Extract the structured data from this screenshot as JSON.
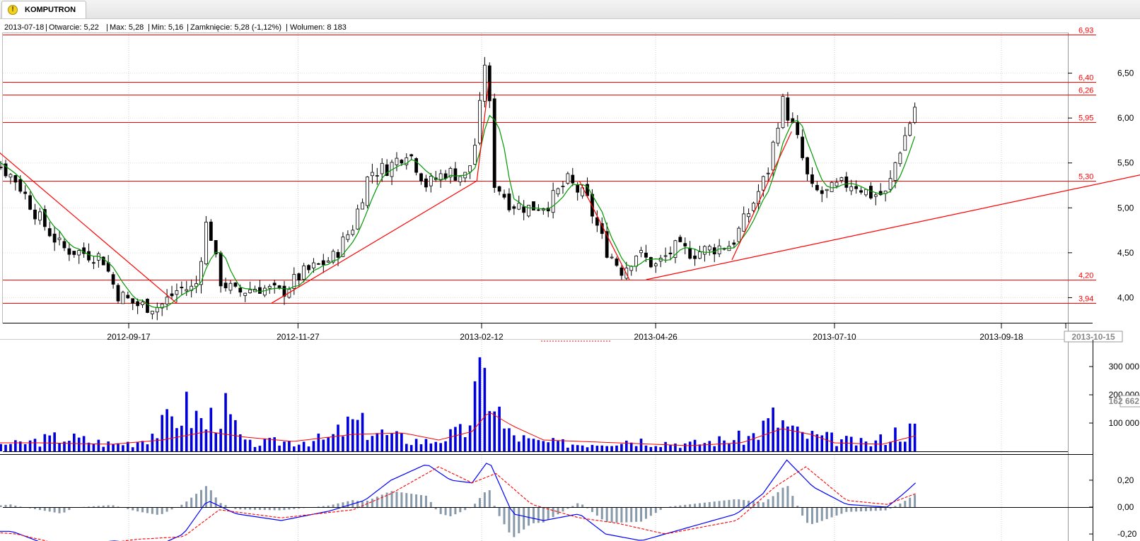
{
  "tab": {
    "label": "KOMPUTRON",
    "icon": "warning-icon"
  },
  "info": {
    "date": "2013-07-18",
    "open": "Otwarcie: 5,22",
    "max": "Max: 5,28",
    "min": "Min: 5,16",
    "close": "Zamknięcie: 5,28 (-1,12%)",
    "volume": "Wolumen: 8 183"
  },
  "colors": {
    "up": "#ffffff",
    "down": "#000000",
    "sma": "#009900",
    "lines": "#ff0000",
    "volume": "#0000dd",
    "macd": "#0000ff",
    "signal": "#ff0000",
    "hist": "#8899aa"
  },
  "chart_data": [
    {
      "type": "candlestick",
      "title": "",
      "x_dates": [
        "2012-09-17",
        "2012-11-27",
        "2013-02-12",
        "2013-04-26",
        "2013-07-10",
        "2013-09-18",
        "2013-10-15"
      ],
      "y_ticks": [
        "4,00",
        "4,50",
        "5,00",
        "5,50",
        "6,00",
        "6,50"
      ],
      "ylim": [
        3.8,
        6.98
      ],
      "horizontal_levels": [
        {
          "label": "6,93",
          "value": 6.93
        },
        {
          "label": "6,40",
          "value": 6.4
        },
        {
          "label": "6,26",
          "value": 6.26
        },
        {
          "label": "5,95",
          "value": 5.95
        },
        {
          "label": "5,30",
          "value": 5.3
        },
        {
          "label": "4,20",
          "value": 4.2
        },
        {
          "label": "3,94",
          "value": 3.94
        }
      ],
      "trend_lines": [
        {
          "from": [
            "2012-07-10",
            5.95
          ],
          "to": [
            "2012-10-07",
            3.94
          ]
        },
        {
          "from": [
            "2012-11-16",
            3.94
          ],
          "to": [
            "2013-02-10",
            5.3
          ]
        },
        {
          "from": [
            "2013-02-10",
            5.3
          ],
          "to": [
            "2013-02-15",
            6.4
          ]
        },
        {
          "from": [
            "2013-03-25",
            5.3
          ],
          "to": [
            "2013-04-15",
            4.2
          ]
        },
        {
          "from": [
            "2013-04-22",
            4.2
          ],
          "to": [
            "2014-01-10",
            5.68
          ]
        },
        {
          "from": [
            "2013-05-28",
            4.42
          ],
          "to": [
            "2013-06-22",
            5.85
          ]
        }
      ],
      "close_points": [
        [
          "2012-07-12",
          5.5
        ],
        [
          "2012-07-22",
          5.55
        ],
        [
          "2012-08-01",
          5.3
        ],
        [
          "2012-08-10",
          4.9
        ],
        [
          "2012-08-20",
          4.55
        ],
        [
          "2012-08-29",
          4.5
        ],
        [
          "2012-09-06",
          4.45
        ],
        [
          "2012-09-12",
          4.05
        ],
        [
          "2012-09-20",
          3.92
        ],
        [
          "2012-09-30",
          3.9
        ],
        [
          "2012-10-08",
          4.1
        ],
        [
          "2012-10-15",
          4.1
        ],
        [
          "2012-10-20",
          4.9
        ],
        [
          "2012-10-25",
          4.2
        ],
        [
          "2012-11-01",
          4.05
        ],
        [
          "2012-11-10",
          4.12
        ],
        [
          "2012-11-20",
          4.05
        ],
        [
          "2012-11-28",
          4.25
        ],
        [
          "2012-12-05",
          4.35
        ],
        [
          "2012-12-12",
          4.45
        ],
        [
          "2012-12-20",
          4.8
        ],
        [
          "2012-12-27",
          5.4
        ],
        [
          "2013-01-04",
          5.45
        ],
        [
          "2013-01-12",
          5.65
        ],
        [
          "2013-01-20",
          5.25
        ],
        [
          "2013-01-28",
          5.4
        ],
        [
          "2013-02-06",
          5.35
        ],
        [
          "2013-02-10",
          5.8
        ],
        [
          "2013-02-14",
          6.8
        ],
        [
          "2013-02-17",
          5.3
        ],
        [
          "2013-02-24",
          5.05
        ],
        [
          "2013-03-04",
          5.0
        ],
        [
          "2013-03-12",
          5.05
        ],
        [
          "2013-03-20",
          5.3
        ],
        [
          "2013-03-28",
          5.1
        ],
        [
          "2013-04-05",
          4.55
        ],
        [
          "2013-04-12",
          4.3
        ],
        [
          "2013-04-18",
          4.5
        ],
        [
          "2013-04-26",
          4.35
        ],
        [
          "2013-05-04",
          4.55
        ],
        [
          "2013-05-12",
          4.5
        ],
        [
          "2013-05-20",
          4.55
        ],
        [
          "2013-05-28",
          4.6
        ],
        [
          "2013-06-04",
          4.95
        ],
        [
          "2013-06-12",
          5.4
        ],
        [
          "2013-06-18",
          6.2
        ],
        [
          "2013-06-24",
          5.8
        ],
        [
          "2013-06-30",
          5.2
        ],
        [
          "2013-07-06",
          5.15
        ],
        [
          "2013-07-12",
          5.25
        ],
        [
          "2013-07-18",
          5.28
        ],
        [
          "2013-07-25",
          5.15
        ],
        [
          "2013-08-01",
          5.15
        ],
        [
          "2013-08-05",
          5.55
        ],
        [
          "2013-08-10",
          5.9
        ],
        [
          "2013-08-13",
          6.15
        ]
      ],
      "sma_period": 5
    },
    {
      "type": "bar",
      "title": "",
      "y_ticks": [
        "100 000",
        "200 000",
        "300 000"
      ],
      "ylim": [
        0,
        340000
      ],
      "current_value_label": "162 662",
      "volume_points": [
        [
          "2012-07-10",
          40000
        ],
        [
          "2012-08-01",
          30000
        ],
        [
          "2012-08-20",
          60000
        ],
        [
          "2012-09-10",
          30000
        ],
        [
          "2012-09-20",
          40000
        ],
        [
          "2012-10-01",
          100000
        ],
        [
          "2012-10-10",
          180000
        ],
        [
          "2012-10-20",
          110000
        ],
        [
          "2012-10-25",
          200000
        ],
        [
          "2012-11-05",
          30000
        ],
        [
          "2012-11-20",
          40000
        ],
        [
          "2012-12-10",
          50000
        ],
        [
          "2012-12-20",
          120000
        ],
        [
          "2013-01-05",
          60000
        ],
        [
          "2013-01-20",
          40000
        ],
        [
          "2013-02-05",
          80000
        ],
        [
          "2013-02-10",
          250000
        ],
        [
          "2013-02-15",
          300000
        ],
        [
          "2013-02-22",
          80000
        ],
        [
          "2013-03-05",
          40000
        ],
        [
          "2013-03-25",
          30000
        ],
        [
          "2013-04-15",
          50000
        ],
        [
          "2013-05-10",
          30000
        ],
        [
          "2013-06-05",
          60000
        ],
        [
          "2013-06-15",
          140000
        ],
        [
          "2013-06-25",
          70000
        ],
        [
          "2013-07-10",
          50000
        ],
        [
          "2013-07-25",
          30000
        ],
        [
          "2013-08-05",
          80000
        ],
        [
          "2013-08-13",
          90000
        ]
      ],
      "ma_points": [
        [
          "2012-07-10",
          30000
        ],
        [
          "2012-08-10",
          30000
        ],
        [
          "2012-09-10",
          25000
        ],
        [
          "2012-10-01",
          40000
        ],
        [
          "2012-10-20",
          70000
        ],
        [
          "2012-11-05",
          50000
        ],
        [
          "2012-11-25",
          35000
        ],
        [
          "2012-12-20",
          60000
        ],
        [
          "2013-01-10",
          65000
        ],
        [
          "2013-01-25",
          40000
        ],
        [
          "2013-02-08",
          70000
        ],
        [
          "2013-02-15",
          140000
        ],
        [
          "2013-02-25",
          90000
        ],
        [
          "2013-03-10",
          40000
        ],
        [
          "2013-04-10",
          30000
        ],
        [
          "2013-05-10",
          20000
        ],
        [
          "2013-06-01",
          30000
        ],
        [
          "2013-06-18",
          80000
        ],
        [
          "2013-06-30",
          60000
        ],
        [
          "2013-07-10",
          30000
        ],
        [
          "2013-07-30",
          25000
        ],
        [
          "2013-08-13",
          55000
        ]
      ]
    },
    {
      "type": "line",
      "title": "",
      "y_ticks": [
        "-0,20",
        "0,00",
        "0,20"
      ],
      "ylim": [
        -0.36,
        0.42
      ],
      "macd_points": [
        [
          "2012-07-10",
          -0.18
        ],
        [
          "2012-07-30",
          -0.18
        ],
        [
          "2012-08-20",
          -0.32
        ],
        [
          "2012-09-10",
          -0.25
        ],
        [
          "2012-09-30",
          -0.28
        ],
        [
          "2012-10-10",
          -0.2
        ],
        [
          "2012-10-20",
          0.05
        ],
        [
          "2012-11-01",
          -0.05
        ],
        [
          "2012-11-20",
          -0.1
        ],
        [
          "2012-12-10",
          -0.03
        ],
        [
          "2012-12-25",
          0.05
        ],
        [
          "2013-01-05",
          0.2
        ],
        [
          "2013-01-20",
          0.32
        ],
        [
          "2013-01-30",
          0.2
        ],
        [
          "2013-02-08",
          0.18
        ],
        [
          "2013-02-15",
          0.35
        ],
        [
          "2013-02-25",
          -0.05
        ],
        [
          "2013-03-10",
          -0.1
        ],
        [
          "2013-03-25",
          -0.05
        ],
        [
          "2013-04-05",
          -0.2
        ],
        [
          "2013-04-20",
          -0.25
        ],
        [
          "2013-05-10",
          -0.15
        ],
        [
          "2013-05-30",
          -0.05
        ],
        [
          "2013-06-10",
          0.1
        ],
        [
          "2013-06-20",
          0.35
        ],
        [
          "2013-07-01",
          0.15
        ],
        [
          "2013-07-15",
          0.02
        ],
        [
          "2013-08-01",
          0.0
        ],
        [
          "2013-08-08",
          0.1
        ],
        [
          "2013-08-13",
          0.18
        ]
      ],
      "signal_points": [
        [
          "2012-07-10",
          -0.17
        ],
        [
          "2012-08-01",
          -0.2
        ],
        [
          "2012-08-25",
          -0.3
        ],
        [
          "2012-09-20",
          -0.24
        ],
        [
          "2012-10-10",
          -0.22
        ],
        [
          "2012-10-25",
          -0.02
        ],
        [
          "2012-11-20",
          -0.08
        ],
        [
          "2012-12-20",
          -0.02
        ],
        [
          "2013-01-05",
          0.1
        ],
        [
          "2013-01-25",
          0.3
        ],
        [
          "2013-02-08",
          0.18
        ],
        [
          "2013-02-18",
          0.25
        ],
        [
          "2013-03-05",
          0.02
        ],
        [
          "2013-03-25",
          -0.08
        ],
        [
          "2013-04-10",
          -0.12
        ],
        [
          "2013-04-30",
          -0.2
        ],
        [
          "2013-05-30",
          -0.1
        ],
        [
          "2013-06-15",
          0.15
        ],
        [
          "2013-06-28",
          0.3
        ],
        [
          "2013-07-15",
          0.05
        ],
        [
          "2013-08-01",
          0.02
        ],
        [
          "2013-08-13",
          0.1
        ]
      ]
    }
  ]
}
